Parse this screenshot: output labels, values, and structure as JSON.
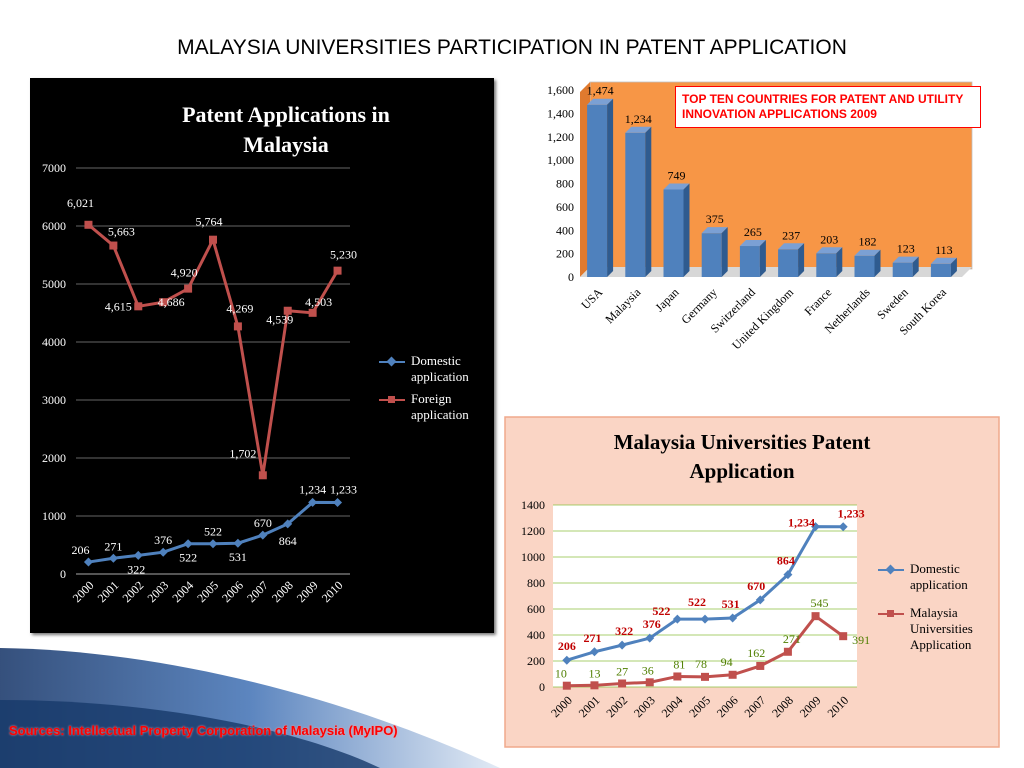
{
  "slide": {
    "title": "MALAYSIA UNIVERSITIES PARTICIPATION IN PATENT APPLICATION",
    "source": "Sources: Intellectual Property  Corporation of Malaysia (MyIPO)"
  },
  "colors": {
    "domestic": "#4f81bd",
    "foreign": "#c0504d",
    "bar": "#4f81bd",
    "orange_panel": "#f79646",
    "pink_panel": "#fad5c5",
    "green_label": "#4f7f00",
    "red_label": "#c00000",
    "callout": "#ff0000"
  },
  "chart_data": [
    {
      "type": "line",
      "title": "Patent Applications in Malaysia",
      "categories": [
        "2000",
        "2001",
        "2002",
        "2003",
        "2004",
        "2005",
        "2006",
        "2007",
        "2008",
        "2009",
        "2010"
      ],
      "ylim": [
        0,
        7000
      ],
      "yticks": [
        "0",
        "1000",
        "2000",
        "3000",
        "4000",
        "5000",
        "6000",
        "7000"
      ],
      "legend_position": "right",
      "grid": true,
      "series": [
        {
          "name": "Domestic application",
          "values": [
            206,
            271,
            322,
            376,
            522,
            522,
            531,
            670,
            864,
            1234,
            1233
          ],
          "labels": [
            "206",
            "271",
            "322",
            "376",
            "522",
            "522",
            "531",
            "670",
            "864",
            "1,234",
            "1,233"
          ]
        },
        {
          "name": "Foreign application",
          "values": [
            6021,
            5663,
            4615,
            4686,
            4920,
            5764,
            4269,
            1702,
            4539,
            4503,
            5230
          ],
          "labels": [
            "6,021",
            "5,663",
            "4,615",
            "4,686",
            "4,920",
            "5,764",
            "4,269",
            "1,702",
            "4,539",
            "4,503",
            "5,230"
          ]
        }
      ]
    },
    {
      "type": "bar",
      "title": "",
      "categories": [
        "USA",
        "Malaysia",
        "Japan",
        "Germany",
        "Switzerland",
        "United Kingdom",
        "France",
        "Netherlands",
        "Sweden",
        "South Korea"
      ],
      "values": [
        1474,
        1234,
        749,
        375,
        265,
        237,
        203,
        182,
        123,
        113
      ],
      "labels": [
        "1,474",
        "1,234",
        "749",
        "375",
        "265",
        "237",
        "203",
        "182",
        "123",
        "113"
      ],
      "ylim": [
        0,
        1600
      ],
      "yticks": [
        "0",
        "200",
        "400",
        "600",
        "800",
        "1,000",
        "1,200",
        "1,400",
        "1,600"
      ],
      "annotation": "TOP TEN COUNTRIES FOR PATENT AND UTILITY INNOVATION APPLICATIONS 2009"
    },
    {
      "type": "line",
      "title": "Malaysia Universities Patent Application",
      "categories": [
        "2000",
        "2001",
        "2002",
        "2003",
        "2004",
        "2005",
        "2006",
        "2007",
        "2008",
        "2009",
        "2010"
      ],
      "ylim": [
        0,
        1400
      ],
      "yticks": [
        "0",
        "200",
        "400",
        "600",
        "800",
        "1000",
        "1200",
        "1400"
      ],
      "legend_position": "right",
      "grid": true,
      "series": [
        {
          "name": "Domestic application",
          "values": [
            206,
            271,
            322,
            376,
            522,
            522,
            531,
            670,
            864,
            1234,
            1233
          ],
          "labels": [
            "206",
            "271",
            "322",
            "376",
            "522",
            "522",
            "531",
            "670",
            "864",
            "1,234",
            "1,233"
          ]
        },
        {
          "name": "Malaysia Universities Application",
          "values": [
            10,
            13,
            27,
            36,
            81,
            78,
            94,
            162,
            271,
            545,
            391
          ],
          "labels": [
            "10",
            "13",
            "27",
            "36",
            "81",
            "78",
            "94",
            "162",
            "271",
            "545",
            "391"
          ]
        }
      ]
    }
  ]
}
